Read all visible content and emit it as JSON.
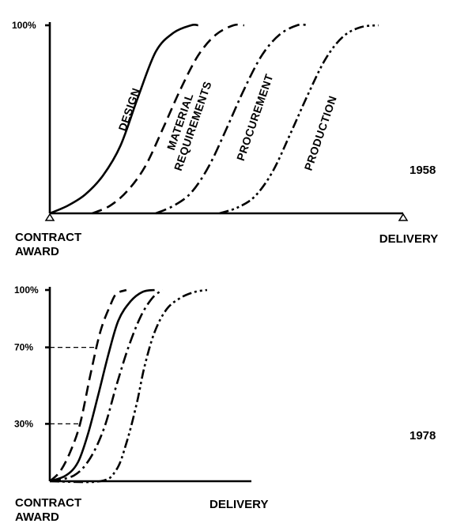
{
  "chart_data": [
    {
      "type": "line",
      "year_label": "1958",
      "y_ticks": [
        "100%"
      ],
      "x_start_label": [
        "CONTRACT",
        "AWARD"
      ],
      "x_end_label": "DELIVERY",
      "ylim": [
        0,
        100
      ],
      "series": [
        {
          "name": "DESIGN",
          "style": "solid",
          "x": [
            0,
            5,
            10,
            15,
            20,
            25,
            30,
            35,
            40,
            42
          ],
          "y": [
            0,
            4,
            10,
            20,
            36,
            62,
            86,
            96,
            100,
            100
          ]
        },
        {
          "name": [
            "MATERIAL",
            "REQUIREMENTS"
          ],
          "style": "dash",
          "x": [
            12,
            17,
            22,
            27,
            32,
            37,
            42,
            47,
            52,
            55
          ],
          "y": [
            0,
            4,
            12,
            25,
            45,
            66,
            84,
            95,
            100,
            100
          ]
        },
        {
          "name": "PROCUREMENT",
          "style": "dash-dot",
          "x": [
            30,
            35,
            40,
            45,
            50,
            55,
            60,
            65,
            70,
            73
          ],
          "y": [
            0,
            4,
            11,
            25,
            45,
            66,
            84,
            95,
            100,
            100
          ]
        },
        {
          "name": "PRODUCTION",
          "style": "dash-dot-dot",
          "x": [
            48,
            53,
            58,
            63,
            68,
            73,
            78,
            83,
            88,
            93
          ],
          "y": [
            0,
            3,
            9,
            22,
            42,
            63,
            82,
            94,
            99,
            100
          ]
        }
      ]
    },
    {
      "type": "line",
      "year_label": "1978",
      "y_ticks": [
        "100%",
        "70%",
        "30%"
      ],
      "x_start_label": [
        "CONTRACT",
        "AWARD"
      ],
      "x_end_label": "DELIVERY",
      "ylim": [
        0,
        100
      ],
      "reference_levels": [
        70,
        30
      ],
      "series": [
        {
          "style": "dash",
          "x": [
            0,
            5,
            10,
            15,
            20,
            25,
            30,
            33,
            38
          ],
          "y": [
            0,
            5,
            15,
            30,
            55,
            78,
            92,
            98,
            100
          ]
        },
        {
          "style": "solid",
          "x": [
            0,
            8,
            14,
            19,
            24,
            29,
            34,
            40,
            46,
            52
          ],
          "y": [
            0,
            3,
            10,
            25,
            45,
            66,
            84,
            94,
            99,
            100
          ]
        },
        {
          "style": "dash-dot",
          "x": [
            0,
            12,
            20,
            27,
            33,
            39,
            45,
            51,
            56
          ],
          "y": [
            0,
            3,
            12,
            28,
            50,
            70,
            86,
            96,
            100
          ]
        },
        {
          "style": "dash-dot-dot",
          "x": [
            0,
            25,
            33,
            38,
            43,
            47,
            52,
            58,
            65,
            72,
            78
          ],
          "y": [
            0,
            0,
            6,
            20,
            40,
            60,
            78,
            90,
            96,
            99,
            100
          ]
        }
      ]
    }
  ]
}
